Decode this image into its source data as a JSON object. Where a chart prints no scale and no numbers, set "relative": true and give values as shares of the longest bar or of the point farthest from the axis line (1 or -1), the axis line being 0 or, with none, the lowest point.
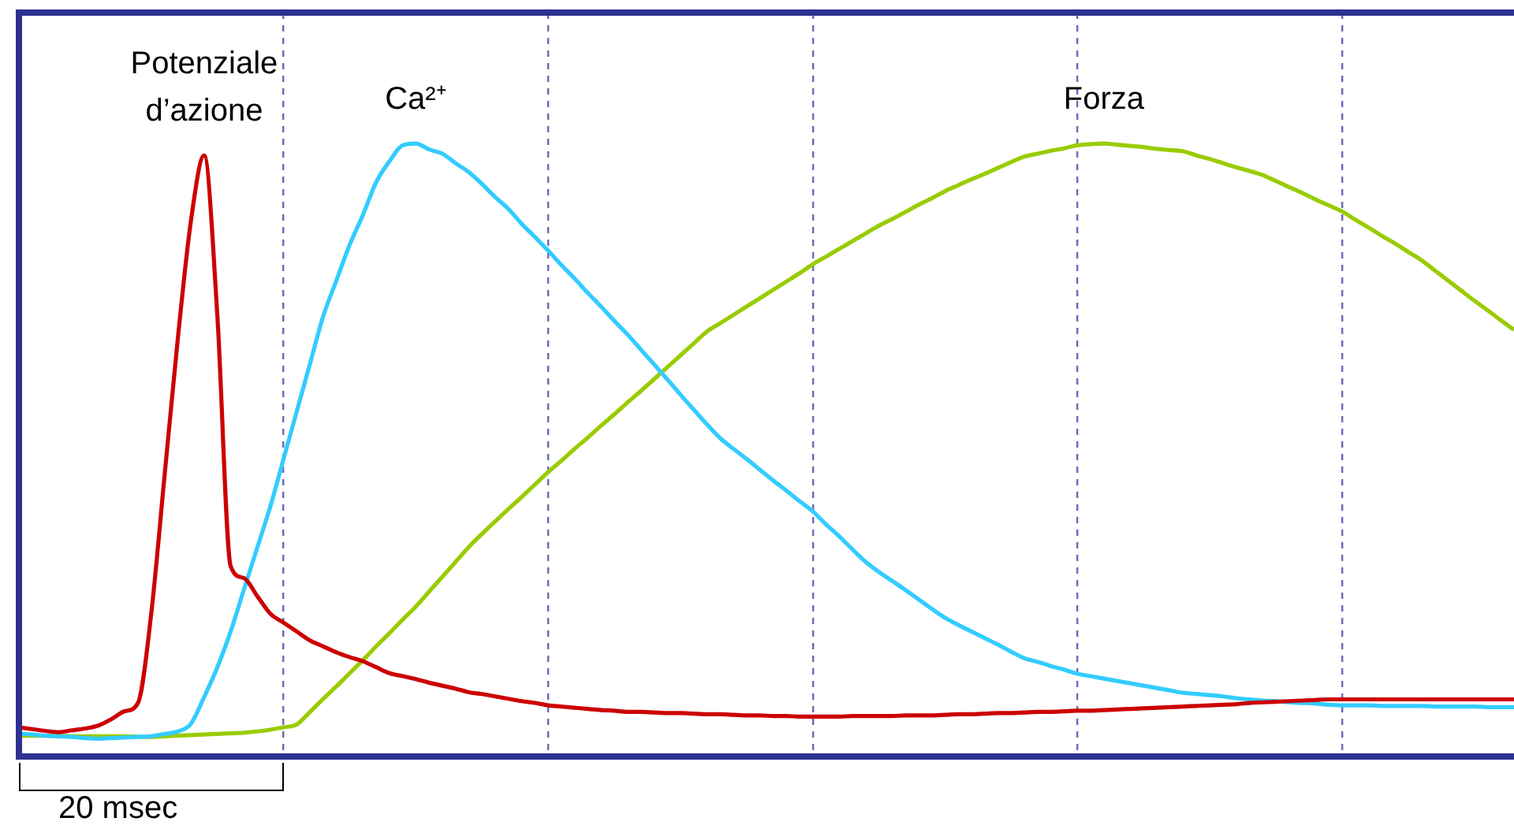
{
  "chart_data": {
    "type": "line",
    "relative": true,
    "grid": "x",
    "tick_labels": false,
    "legend": false,
    "marker": "none",
    "line_style": "solid",
    "annotations": [
      "20 msec"
    ],
    "categories": [
      null,
      null,
      null,
      null,
      null,
      null,
      null,
      null,
      null,
      null,
      null,
      null,
      null,
      null,
      null,
      null,
      null,
      null,
      null,
      null,
      null,
      null,
      null,
      null,
      null,
      null,
      null,
      null,
      null,
      null,
      null,
      null,
      null,
      null,
      null,
      null,
      null,
      null,
      null,
      null,
      null,
      null,
      null,
      null,
      null,
      null,
      null,
      null,
      null,
      null,
      null,
      null,
      null,
      null,
      null,
      null,
      null,
      null,
      null,
      null,
      null,
      null,
      null,
      null,
      null,
      null,
      null,
      null,
      null,
      null,
      null,
      null,
      null,
      null,
      null,
      null,
      null,
      null,
      null,
      null,
      null,
      null,
      null,
      null,
      null,
      null,
      null,
      null,
      null,
      null,
      null,
      null,
      null,
      null,
      null,
      null,
      null,
      null,
      null,
      null,
      null,
      null,
      null,
      null,
      null,
      null,
      null,
      null,
      null,
      null,
      null,
      null,
      null,
      null
    ],
    "series": [
      {
        "name": "Potenziale d’azione",
        "color": "#cc0000",
        "values": [
          0.019,
          0.016,
          0.013,
          0.011,
          0.014,
          0.017,
          0.022,
          0.033,
          0.046,
          0.06,
          0.21,
          0.44,
          0.67,
          0.87,
          0.98,
          0.71,
          0.29,
          0.27,
          0.24,
          0.21,
          0.195,
          0.18,
          0.165,
          0.155,
          0.145,
          0.137,
          0.13,
          0.12,
          0.11,
          0.105,
          0.1,
          0.094,
          0.089,
          0.084,
          0.078,
          0.075,
          0.071,
          0.067,
          0.063,
          0.06,
          0.056,
          0.054,
          0.052,
          0.05,
          0.048,
          0.047,
          0.045,
          0.045,
          0.044,
          0.043,
          0.043,
          0.042,
          0.041,
          0.041,
          0.04,
          0.039,
          0.039,
          0.038,
          0.038,
          0.037,
          0.037,
          0.037,
          0.037,
          0.038,
          0.038,
          0.038,
          0.038,
          0.039,
          0.039,
          0.039,
          0.04,
          0.041,
          0.041,
          0.042,
          0.043,
          0.043,
          0.044,
          0.045,
          0.045,
          0.046,
          0.047,
          0.047,
          0.048,
          0.049,
          0.05,
          0.051,
          0.052,
          0.053,
          0.054,
          0.055,
          0.056,
          0.057,
          0.058,
          0.06,
          0.061,
          0.062,
          0.063,
          0.064,
          0.065,
          0.066,
          0.066,
          0.066,
          0.066,
          0.066,
          0.066,
          0.066,
          0.066,
          0.066,
          0.066,
          0.066,
          0.066,
          0.066,
          0.066,
          0.066
        ]
      },
      {
        "name": "Ca²⁺",
        "color": "#33ccff",
        "values": [
          0.008,
          0.007,
          0.005,
          0.004,
          0.003,
          0.001,
          0,
          0.001,
          0.002,
          0.003,
          0.004,
          0.008,
          0.012,
          0.025,
          0.07,
          0.12,
          0.18,
          0.25,
          0.32,
          0.39,
          0.47,
          0.55,
          0.63,
          0.71,
          0.77,
          0.83,
          0.88,
          0.935,
          0.97,
          0.997,
          1,
          0.99,
          0.983,
          0.967,
          0.952,
          0.932,
          0.91,
          0.89,
          0.865,
          0.843,
          0.82,
          0.796,
          0.773,
          0.749,
          0.726,
          0.702,
          0.679,
          0.654,
          0.629,
          0.604,
          0.578,
          0.553,
          0.528,
          0.505,
          0.487,
          0.47,
          0.452,
          0.434,
          0.417,
          0.399,
          0.382,
          0.36,
          0.34,
          0.318,
          0.297,
          0.28,
          0.265,
          0.25,
          0.234,
          0.218,
          0.203,
          0.191,
          0.18,
          0.169,
          0.158,
          0.146,
          0.135,
          0.129,
          0.122,
          0.116,
          0.109,
          0.105,
          0.101,
          0.097,
          0.093,
          0.089,
          0.085,
          0.081,
          0.077,
          0.075,
          0.073,
          0.071,
          0.068,
          0.066,
          0.064,
          0.063,
          0.061,
          0.06,
          0.059,
          0.057,
          0.056,
          0.056,
          0.056,
          0.055,
          0.055,
          0.055,
          0.055,
          0.054,
          0.054,
          0.054,
          0.054,
          0.053,
          0.053,
          0.053
        ]
      },
      {
        "name": "Forza",
        "color": "#99cc00",
        "values": [
          0.005,
          0.005,
          0.005,
          0.005,
          0.004,
          0.004,
          0.004,
          0.004,
          0.004,
          0.003,
          0.003,
          0.004,
          0.005,
          0.006,
          0.007,
          0.008,
          0.009,
          0.01,
          0.012,
          0.015,
          0.019,
          0.024,
          0.045,
          0.067,
          0.088,
          0.11,
          0.132,
          0.155,
          0.177,
          0.2,
          0.222,
          0.247,
          0.272,
          0.297,
          0.322,
          0.344,
          0.365,
          0.386,
          0.406,
          0.427,
          0.448,
          0.467,
          0.487,
          0.506,
          0.526,
          0.545,
          0.565,
          0.584,
          0.604,
          0.624,
          0.644,
          0.664,
          0.684,
          0.698,
          0.712,
          0.726,
          0.74,
          0.754,
          0.768,
          0.782,
          0.797,
          0.81,
          0.823,
          0.836,
          0.849,
          0.862,
          0.873,
          0.885,
          0.897,
          0.908,
          0.92,
          0.93,
          0.94,
          0.949,
          0.959,
          0.969,
          0.978,
          0.983,
          0.988,
          0.992,
          0.997,
          0.999,
          1,
          0.998,
          0.996,
          0.994,
          0.991,
          0.989,
          0.987,
          0.98,
          0.974,
          0.967,
          0.96,
          0.954,
          0.947,
          0.937,
          0.927,
          0.917,
          0.906,
          0.896,
          0.886,
          0.872,
          0.859,
          0.845,
          0.832,
          0.818,
          0.804,
          0.787,
          0.77,
          0.753,
          0.736,
          0.72,
          0.703,
          0.687
        ]
      }
    ]
  }
}
